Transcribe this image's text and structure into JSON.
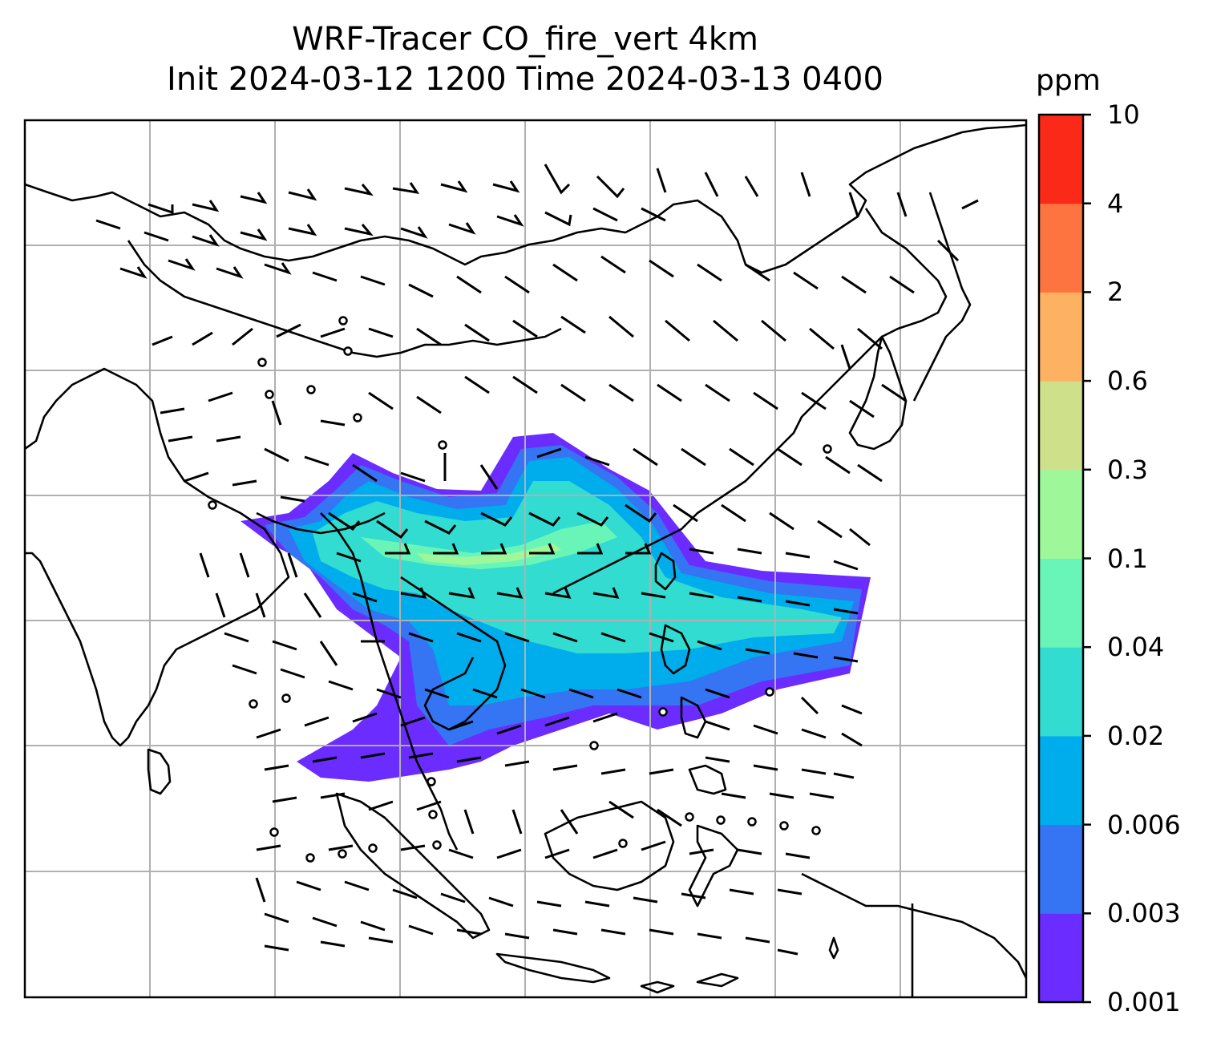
{
  "title": {
    "line1": "WRF-Tracer CO_fire_vert 4km",
    "line2": "Init 2024-03-12 1200 Time 2024-03-13 0400"
  },
  "colorbar": {
    "unit": "ppm",
    "levels": [
      "0.001",
      "0.003",
      "0.006",
      "0.02",
      "0.04",
      "0.1",
      "0.3",
      "0.6",
      "2",
      "4",
      "10"
    ],
    "colors": [
      "#6b2cff",
      "#3574f2",
      "#00adec",
      "#32dcd0",
      "#6af5b8",
      "#9ef89a",
      "#cfe08a",
      "#fdb262",
      "#fd7440",
      "#fb2a18"
    ]
  },
  "map": {
    "field": "CO_fire_vert",
    "height": "4km",
    "plume_color_hints": [
      "#6b2cff",
      "#3574f2",
      "#00adec",
      "#32dcd0",
      "#9ef89a"
    ],
    "gridline_color": "#b0b0b0",
    "coastline_color": "#000000",
    "wind_barbs": true
  }
}
